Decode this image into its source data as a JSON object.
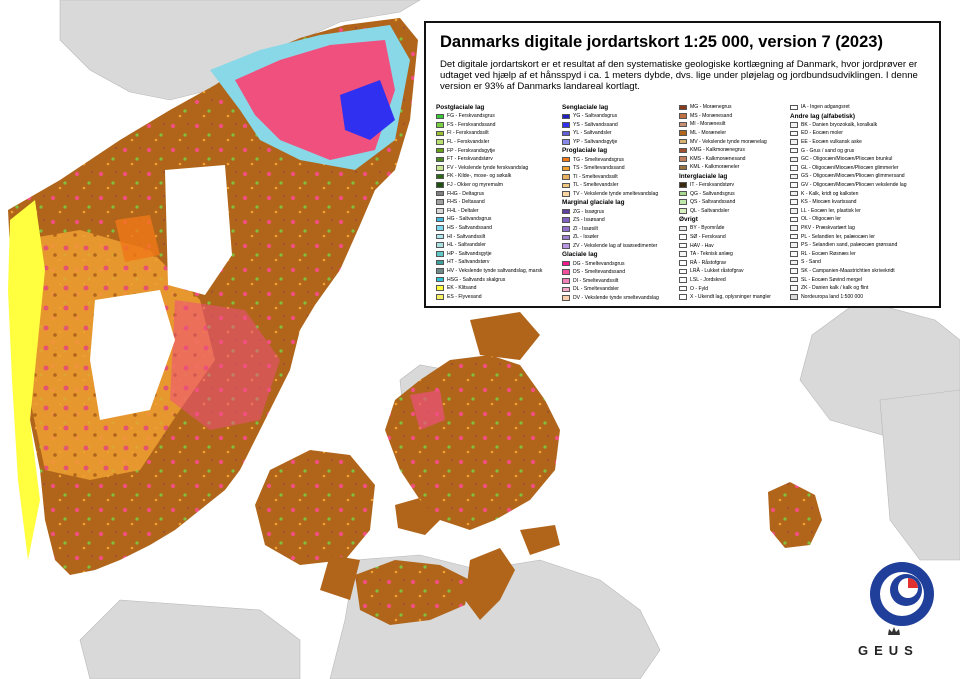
{
  "title": "Danmarks digitale jordartskort 1:25 000, version 7 (2023)",
  "description": "Det digitale jordartskort er et resultat af den systematiske geologiske kortlægning af Danmark, hvor jordprøver er udtaget ved hjælp af et hånsspyd i ca. 1 meters dybde, dvs. lige under pløjelag og jordbundsudviklingen. I denne version er 93% af Danmarks landareal kortlagt.",
  "colors": {
    "sea": "#ffffff",
    "neighbour_land": "#d9d9d9",
    "clay": "#b0651a",
    "sand": "#f0a030",
    "pink": "#f0507e",
    "fresh": "#80c040",
    "salt": "#88d8e8",
    "dune": "#ffff40",
    "unmapped": "#ffffff"
  },
  "legend": {
    "col1": [
      {
        "type": "group",
        "label": "Postglaciale lag"
      },
      {
        "type": "item",
        "label": "FG - Ferskvandsgrus",
        "color": "#3ac83a"
      },
      {
        "type": "item",
        "label": "FS - Ferskvandssand",
        "color": "#78d040"
      },
      {
        "type": "item",
        "label": "FI - Ferskvandssilt",
        "color": "#98c030"
      },
      {
        "type": "item",
        "label": "FL - Ferskvandsler",
        "color": "#b8e070"
      },
      {
        "type": "item",
        "label": "FP - Ferskvandsgytje",
        "color": "#6aa020"
      },
      {
        "type": "item",
        "label": "FT - Ferskvandstørv",
        "color": "#4a8a20"
      },
      {
        "type": "item",
        "label": "FV - Vekslende tynde ferskvandslag",
        "color": "#c8e898"
      },
      {
        "type": "item",
        "label": "FK - Kilde-, mose- og søkalk",
        "color": "#2a6a10"
      },
      {
        "type": "item",
        "label": "FJ - Okker og myremalm",
        "color": "#1e5010"
      },
      {
        "type": "item",
        "label": "FHG - Deltagrus",
        "color": "#808080"
      },
      {
        "type": "item",
        "label": "FHS - Deltasand",
        "color": "#a0a0a0"
      },
      {
        "type": "item",
        "label": "FHL - Deltaler",
        "color": "#d8d8d8"
      },
      {
        "type": "item",
        "label": "HG - Saltvandsgrus",
        "color": "#40b8e0"
      },
      {
        "type": "item",
        "label": "HS - Saltvandssand",
        "color": "#80d8f0"
      },
      {
        "type": "item",
        "label": "HI - Saltvandssilt",
        "color": "#b0e8f0"
      },
      {
        "type": "item",
        "label": "HL - Saltvandsler",
        "color": "#a8e0e0"
      },
      {
        "type": "item",
        "label": "HP - Saltvandsgytje",
        "color": "#60c8c8"
      },
      {
        "type": "item",
        "label": "HT - Saltvandstørv",
        "color": "#40a0a0"
      },
      {
        "type": "item",
        "label": "HV - Vekslende tynde saltvandslag, marsk",
        "color": "#708888"
      },
      {
        "type": "item",
        "label": "HSG - Saltvands skalgrus",
        "color": "#30c0d8"
      },
      {
        "type": "item",
        "label": "EK - Klitsand",
        "color": "#ffff40"
      },
      {
        "type": "item",
        "label": "ES - Flyvesand",
        "color": "#f8f060"
      }
    ],
    "col2": [
      {
        "type": "group",
        "label": "Senglaciale lag"
      },
      {
        "type": "item",
        "label": "YG - Saltvandsgrus",
        "color": "#2020c0"
      },
      {
        "type": "item",
        "label": "YS - Saltvandssand",
        "color": "#3030f0"
      },
      {
        "type": "item",
        "label": "YL - Saltvandsler",
        "color": "#6060d8"
      },
      {
        "type": "item",
        "label": "YP - Saltvandsgytje",
        "color": "#8888e8"
      },
      {
        "type": "group",
        "label": "Proglaciale lag"
      },
      {
        "type": "item",
        "label": "TG - Smeltevandsgrus",
        "color": "#f07818"
      },
      {
        "type": "item",
        "label": "TS - Smeltevandssand",
        "color": "#f0a030"
      },
      {
        "type": "item",
        "label": "TI - Smeltevandssilt",
        "color": "#e8b060"
      },
      {
        "type": "item",
        "label": "TL - Smeltevandsler",
        "color": "#f0c880"
      },
      {
        "type": "item",
        "label": "TV - Vekslende tynde smeltevandslag",
        "color": "#f8d8a0"
      },
      {
        "type": "group",
        "label": "Marginal glaciale lag"
      },
      {
        "type": "item",
        "label": "ZG - Issøgrus",
        "color": "#6040a0"
      },
      {
        "type": "item",
        "label": "ZS - Issøsand",
        "color": "#8060c0"
      },
      {
        "type": "item",
        "label": "ZI - Issøsilt",
        "color": "#9070c8"
      },
      {
        "type": "item",
        "label": "ZL - Issøler",
        "color": "#a080d0"
      },
      {
        "type": "item",
        "label": "ZV - Vekslende lag af issøsedimenter",
        "color": "#b898e0"
      },
      {
        "type": "group",
        "label": "Glaciale lag"
      },
      {
        "type": "item",
        "label": "DG - Smeltevandsgrus",
        "color": "#f01890"
      },
      {
        "type": "item",
        "label": "DS - Smeltevandssand",
        "color": "#f050a0"
      },
      {
        "type": "item",
        "label": "DI - Smeltevandssilt",
        "color": "#f080b8"
      },
      {
        "type": "item",
        "label": "DL - Smeltevandsler",
        "color": "#f8a8c8"
      },
      {
        "type": "item",
        "label": "DV - Vekslende tynde smeltevandslag",
        "color": "#f8d0b0"
      }
    ],
    "col3": [
      {
        "type": "item",
        "label": "MG - Morænegrus",
        "color": "#8a3a1a"
      },
      {
        "type": "item",
        "label": "MS - Morænesand",
        "color": "#c07040"
      },
      {
        "type": "item",
        "label": "MI - Morænesilt",
        "color": "#c89070"
      },
      {
        "type": "item",
        "label": "ML - Moræneler",
        "color": "#b0651a"
      },
      {
        "type": "item",
        "label": "MV - Vekslende tynde morænelag",
        "color": "#d8b070"
      },
      {
        "type": "item",
        "label": "KMG - Kalkmorænegrus",
        "color": "#a05030"
      },
      {
        "type": "item",
        "label": "KMS - Kalkmorænesand",
        "color": "#c08060"
      },
      {
        "type": "item",
        "label": "KML - Kalkmoræneler",
        "color": "#987040"
      },
      {
        "type": "group",
        "label": "Interglaciale lag"
      },
      {
        "type": "item",
        "label": "IT - Ferskvandstørv",
        "color": "#3a2a10"
      },
      {
        "type": "item",
        "label": "QG - Saltvandsgrus",
        "color": "#a8d890"
      },
      {
        "type": "item",
        "label": "QS - Saltvandssand",
        "color": "#c0e8a8"
      },
      {
        "type": "item",
        "label": "QL - Saltvandsler",
        "color": "#d8f0c0"
      },
      {
        "type": "group",
        "label": "Øvrigt"
      },
      {
        "type": "item",
        "label": "BY - Byområde",
        "color": "#e8e8e8"
      },
      {
        "type": "item",
        "label": "SØ - Ferskvand",
        "color": "#ffffff"
      },
      {
        "type": "item",
        "label": "HAV - Hav",
        "color": "#ffffff"
      },
      {
        "type": "item",
        "label": "TA - Teknisk anlæg",
        "color": "#f4f4f4"
      },
      {
        "type": "item",
        "label": "RÅ - Råstofgrav",
        "color": "#ffffff"
      },
      {
        "type": "item",
        "label": "LRÅ - Lukket råstofgrav",
        "color": "#ffffff"
      },
      {
        "type": "item",
        "label": "LSL - Jordskred",
        "color": "#ffffff"
      },
      {
        "type": "item",
        "label": "O - Fyld",
        "color": "#ffffff"
      },
      {
        "type": "item",
        "label": "X - Ukendt lag, oplysninger mangler",
        "color": "#ffffff"
      }
    ],
    "col4": [
      {
        "type": "item",
        "label": "IA - Ingen adgangsret",
        "color": "#ffffff"
      },
      {
        "type": "group",
        "label": "Andre lag (alfabetisk)"
      },
      {
        "type": "item",
        "label": "BK - Danien bryozokalk, koralkalk",
        "color": "#f0f0f0"
      },
      {
        "type": "item",
        "label": "ED - Eocæn moler",
        "color": "#f8f8f8"
      },
      {
        "type": "item",
        "label": "EE - Eocæn vulkansk aske",
        "color": "#f0f0f0"
      },
      {
        "type": "item",
        "label": "G - Grus / sand og grus",
        "color": "#f8f8f8"
      },
      {
        "type": "item",
        "label": "GC - Oligocæn/Miocæn/Pliocæn brunkul",
        "color": "#f0f0f0"
      },
      {
        "type": "item",
        "label": "GL - Oligocæn/Miocæn/Pliocæn glimmerler",
        "color": "#f8f8f8"
      },
      {
        "type": "item",
        "label": "GS - Oligocæn/Miocæn/Pliocæn glimmersand",
        "color": "#f0f0f0"
      },
      {
        "type": "item",
        "label": "GV - Oligocæn/Miocæn/Pliocæn vekslende lag",
        "color": "#f8f8f8"
      },
      {
        "type": "item",
        "label": "K - Kalk, kridt og kalksten",
        "color": "#f0f0f0"
      },
      {
        "type": "item",
        "label": "KS - Miocæn kvartssand",
        "color": "#f8f8f8"
      },
      {
        "type": "item",
        "label": "LL - Eocæn ler, plastisk ler",
        "color": "#f0f0f0"
      },
      {
        "type": "item",
        "label": "OL - Oligocæn ler",
        "color": "#f8f8f8"
      },
      {
        "type": "item",
        "label": "PKV - Præskvartært lag",
        "color": "#f0f0f0"
      },
      {
        "type": "item",
        "label": "PL - Selandien ler, palæocæn ler",
        "color": "#f8f8f8"
      },
      {
        "type": "item",
        "label": "PS - Selandien sand, palæocæn grønsand",
        "color": "#f0f0f0"
      },
      {
        "type": "item",
        "label": "RL - Eocæn Røsnæs ler",
        "color": "#f8f8f8"
      },
      {
        "type": "item",
        "label": "S - Sand",
        "color": "#f0f0f0"
      },
      {
        "type": "item",
        "label": "SK - Campanien-Maastrichtien skrivekridt",
        "color": "#f8f8f8"
      },
      {
        "type": "item",
        "label": "SL - Eocæn Søvind mergel",
        "color": "#f0f0f0"
      },
      {
        "type": "item",
        "label": "ZK - Danien kalk / kalk og flint",
        "color": "#f8f8f8"
      },
      {
        "type": "item",
        "label": "Nordeuropa land 1:500 000",
        "color": "#d9d9d9"
      }
    ]
  },
  "logo": {
    "text": "GEUS"
  }
}
